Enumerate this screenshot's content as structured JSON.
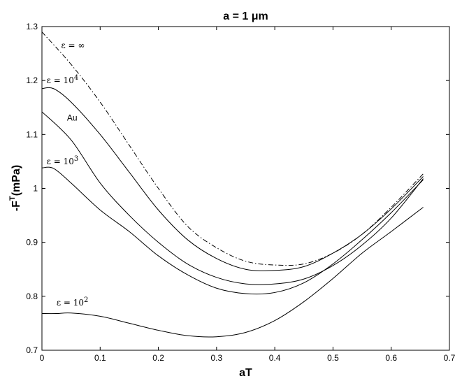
{
  "chart_data": {
    "type": "line",
    "title": "a = 1 μm",
    "xlabel": "aT",
    "ylabel": "-F",
    "ylabel_superscript": "T",
    "ylabel_unit": "(mPa)",
    "xlim": [
      0,
      0.7
    ],
    "ylim": [
      0.7,
      1.3
    ],
    "grid": false,
    "x_ticks": [
      "0",
      "0.1",
      "0.2",
      "0.3",
      "0.4",
      "0.5",
      "0.6",
      "0.7"
    ],
    "y_ticks": [
      "0.7",
      "0.8",
      "0.9",
      "1",
      "1.1",
      "1.2",
      "1.3"
    ],
    "series": [
      {
        "label_base": "ε = ∞",
        "label_sup": "",
        "style": "dashdot",
        "x": [
          0,
          0.05,
          0.1,
          0.15,
          0.2,
          0.25,
          0.3,
          0.35,
          0.4,
          0.45,
          0.5,
          0.55,
          0.6,
          0.655
        ],
        "y": [
          1.29,
          1.23,
          1.16,
          1.08,
          1.0,
          0.93,
          0.89,
          0.865,
          0.858,
          0.86,
          0.88,
          0.915,
          0.965,
          1.027
        ]
      },
      {
        "label_base": "ε = 10",
        "label_sup": "4",
        "style": "solid",
        "x": [
          0,
          0.02,
          0.05,
          0.1,
          0.15,
          0.2,
          0.25,
          0.3,
          0.35,
          0.4,
          0.45,
          0.5,
          0.55,
          0.6,
          0.655
        ],
        "y": [
          1.185,
          1.185,
          1.16,
          1.1,
          1.03,
          0.96,
          0.905,
          0.87,
          0.85,
          0.848,
          0.855,
          0.88,
          0.915,
          0.962,
          1.022
        ]
      },
      {
        "label_base": "Au",
        "label_sup": "",
        "style": "solid",
        "x": [
          0,
          0.05,
          0.1,
          0.15,
          0.2,
          0.25,
          0.3,
          0.35,
          0.4,
          0.45,
          0.5,
          0.55,
          0.6,
          0.655
        ],
        "y": [
          1.142,
          1.09,
          1.01,
          0.95,
          0.9,
          0.86,
          0.835,
          0.823,
          0.823,
          0.832,
          0.857,
          0.895,
          0.945,
          1.018
        ]
      },
      {
        "label_base": "ε = 10",
        "label_sup": "3",
        "style": "solid",
        "x": [
          0,
          0.02,
          0.05,
          0.1,
          0.15,
          0.2,
          0.25,
          0.3,
          0.35,
          0.4,
          0.45,
          0.5,
          0.55,
          0.6,
          0.655
        ],
        "y": [
          1.038,
          1.037,
          1.01,
          0.96,
          0.92,
          0.875,
          0.84,
          0.815,
          0.805,
          0.807,
          0.825,
          0.86,
          0.905,
          0.955,
          1.016
        ]
      },
      {
        "label_base": "ε = 10",
        "label_sup": "2",
        "style": "solid",
        "x": [
          0,
          0.025,
          0.05,
          0.1,
          0.15,
          0.2,
          0.25,
          0.3,
          0.35,
          0.4,
          0.45,
          0.5,
          0.55,
          0.6,
          0.655
        ],
        "y": [
          0.768,
          0.768,
          0.769,
          0.763,
          0.75,
          0.737,
          0.727,
          0.725,
          0.733,
          0.755,
          0.79,
          0.833,
          0.88,
          0.92,
          0.965
        ]
      }
    ],
    "annotations": [
      {
        "series_index": 0,
        "x": 0.033,
        "y": 1.26
      },
      {
        "series_index": 1,
        "x": 0.008,
        "y": 1.195
      },
      {
        "series_index": 2,
        "x": 0.043,
        "y": 1.126
      },
      {
        "series_index": 3,
        "x": 0.008,
        "y": 1.045
      },
      {
        "series_index": 4,
        "x": 0.025,
        "y": 0.783
      }
    ]
  }
}
